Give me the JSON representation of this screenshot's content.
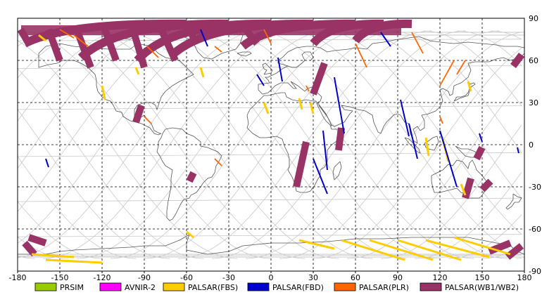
{
  "map": {
    "x_ticks": [
      "-180",
      "-150",
      "-120",
      "-90",
      "-60",
      "-30",
      "0",
      "30",
      "60",
      "90",
      "120",
      "150",
      "180"
    ],
    "y_ticks": [
      "90",
      "60",
      "30",
      "0",
      "-30",
      "-60",
      "-90"
    ],
    "lon_range": [
      -180,
      180
    ],
    "lat_range": [
      -90,
      90
    ],
    "grid": true,
    "colors": {
      "orbit": "#c8c8c8",
      "coast": "#555555",
      "grid": "#000000",
      "frame": "#000000"
    }
  },
  "legend": [
    {
      "label": "PRSIM",
      "color": "#99cc00"
    },
    {
      "label": "AVNIR-2",
      "color": "#ff00ff"
    },
    {
      "label": "PALSAR(FBS)",
      "color": "#ffcc00"
    },
    {
      "label": "PALSAR(FBD)",
      "color": "#0000cc"
    },
    {
      "label": "PALSAR(PLR)",
      "color": "#ff6600"
    },
    {
      "label": "PALSAR(WB1/WB2)",
      "color": "#993366"
    }
  ],
  "observations": {
    "wb": {
      "color": "#993366",
      "swaths": [
        {
          "lon1": -178,
          "lat1": 82,
          "lon2": -172,
          "lat2": 72
        },
        {
          "lon1": -158,
          "lat1": 82,
          "lon2": -150,
          "lat2": 60
        },
        {
          "lon1": -138,
          "lat1": 82,
          "lon2": -128,
          "lat2": 55
        },
        {
          "lon1": -118,
          "lat1": 82,
          "lon2": -110,
          "lat2": 60
        },
        {
          "lon1": -98,
          "lat1": 82,
          "lon2": -90,
          "lat2": 55
        },
        {
          "lon1": -78,
          "lat1": 82,
          "lon2": -68,
          "lat2": 60
        },
        {
          "lon1": -58,
          "lat1": 82,
          "lon2": -54,
          "lat2": 74
        },
        {
          "lon1": -18,
          "lat1": 82,
          "lon2": -10,
          "lat2": 72
        },
        {
          "lon1": 38,
          "lat1": 58,
          "lon2": 30,
          "lat2": 36
        },
        {
          "lon1": 25,
          "lat1": 2,
          "lon2": 18,
          "lat2": -30
        },
        {
          "lon1": -92,
          "lat1": 28,
          "lon2": -96,
          "lat2": 16
        },
        {
          "lon1": -55,
          "lat1": -20,
          "lon2": -58,
          "lat2": -26
        },
        {
          "lon1": 50,
          "lat1": 12,
          "lon2": 48,
          "lat2": -4
        },
        {
          "lon1": 150,
          "lat1": -2,
          "lon2": 146,
          "lat2": -10
        },
        {
          "lon1": 142,
          "lat1": -24,
          "lon2": 138,
          "lat2": -38
        },
        {
          "lon1": 156,
          "lat1": -26,
          "lon2": 150,
          "lat2": -32
        },
        {
          "lon1": 178,
          "lat1": 64,
          "lon2": 172,
          "lat2": 56
        },
        {
          "lon1": 170,
          "lat1": -70,
          "lon2": 155,
          "lat2": -76
        },
        {
          "lon1": 178,
          "lat1": -72,
          "lon2": 168,
          "lat2": -80
        },
        {
          "lon1": -172,
          "lat1": -66,
          "lon2": -160,
          "lat2": -70
        },
        {
          "lon1": -175,
          "lat1": -70,
          "lon2": -168,
          "lat2": -78
        }
      ],
      "arcs": [
        {
          "lon1": -175,
          "lat1": 72,
          "lon2": -60,
          "lat2": 86
        },
        {
          "lon1": -135,
          "lat1": 62,
          "lon2": -30,
          "lat2": 86
        },
        {
          "lon1": -95,
          "lat1": 60,
          "lon2": 0,
          "lat2": 86
        },
        {
          "lon1": -70,
          "lat1": 64,
          "lon2": 30,
          "lat2": 86
        },
        {
          "lon1": -20,
          "lat1": 70,
          "lon2": 60,
          "lat2": 86
        },
        {
          "lon1": 30,
          "lat1": 72,
          "lon2": 80,
          "lat2": 86
        },
        {
          "lon1": 60,
          "lat1": 74,
          "lon2": 100,
          "lat2": 86
        }
      ]
    },
    "fbd": {
      "color": "#0000cc",
      "lines": [
        {
          "lon1": 30,
          "lat1": -10,
          "lon2": 40,
          "lat2": -35
        },
        {
          "lon1": 37,
          "lat1": 10,
          "lon2": 40,
          "lat2": -18
        },
        {
          "lon1": 45,
          "lat1": 48,
          "lon2": 52,
          "lat2": 8
        },
        {
          "lon1": 92,
          "lat1": 32,
          "lon2": 98,
          "lat2": 6
        },
        {
          "lon1": 98,
          "lat1": 15,
          "lon2": 104,
          "lat2": -10
        },
        {
          "lon1": 120,
          "lat1": 10,
          "lon2": 132,
          "lat2": -30
        },
        {
          "lon1": -10,
          "lat1": 50,
          "lon2": -5,
          "lat2": 42
        },
        {
          "lon1": 5,
          "lat1": 62,
          "lon2": 8,
          "lat2": 45
        },
        {
          "lon1": -50,
          "lat1": 82,
          "lon2": -45,
          "lat2": 70
        },
        {
          "lon1": 78,
          "lat1": 80,
          "lon2": 85,
          "lat2": 70
        },
        {
          "lon1": -160,
          "lat1": -10,
          "lon2": -158,
          "lat2": -16
        },
        {
          "lon1": 175,
          "lat1": -2,
          "lon2": 176,
          "lat2": -6
        },
        {
          "lon1": 148,
          "lat1": 8,
          "lon2": 150,
          "lat2": 2
        }
      ]
    },
    "fbs": {
      "color": "#ffcc00",
      "lines": [
        {
          "lon1": -120,
          "lat1": 42,
          "lon2": -118,
          "lat2": 32
        },
        {
          "lon1": -96,
          "lat1": 55,
          "lon2": -94,
          "lat2": 50
        },
        {
          "lon1": -50,
          "lat1": 55,
          "lon2": -48,
          "lat2": 48
        },
        {
          "lon1": -5,
          "lat1": 30,
          "lon2": -2,
          "lat2": 22
        },
        {
          "lon1": 20,
          "lat1": 33,
          "lon2": 22,
          "lat2": 25
        },
        {
          "lon1": 28,
          "lat1": 30,
          "lon2": 30,
          "lat2": 22
        },
        {
          "lon1": 110,
          "lat1": 5,
          "lon2": 112,
          "lat2": -8
        },
        {
          "lon1": 122,
          "lat1": 4,
          "lon2": 126,
          "lat2": -12
        },
        {
          "lon1": 140,
          "lat1": 45,
          "lon2": 142,
          "lat2": 38
        },
        {
          "lon1": 135,
          "lat1": -28,
          "lon2": 138,
          "lat2": -36
        },
        {
          "lon1": -165,
          "lat1": 78,
          "lon2": -160,
          "lat2": 74
        },
        {
          "lon1": -60,
          "lat1": -62,
          "lon2": -55,
          "lat2": -66
        },
        {
          "lon1": 20,
          "lat1": -68,
          "lon2": 45,
          "lat2": -74
        },
        {
          "lon1": 50,
          "lat1": -68,
          "lon2": 95,
          "lat2": -82
        },
        {
          "lon1": 70,
          "lat1": -68,
          "lon2": 115,
          "lat2": -82
        },
        {
          "lon1": 90,
          "lat1": -68,
          "lon2": 135,
          "lat2": -82
        },
        {
          "lon1": 110,
          "lat1": -68,
          "lon2": 155,
          "lat2": -80
        },
        {
          "lon1": 130,
          "lat1": -66,
          "lon2": 170,
          "lat2": -78
        },
        {
          "lon1": -170,
          "lat1": -78,
          "lon2": -140,
          "lat2": -80
        },
        {
          "lon1": -160,
          "lat1": -82,
          "lon2": -120,
          "lat2": -84
        }
      ]
    },
    "plr": {
      "color": "#ff6600",
      "lines": [
        {
          "lon1": -140,
          "lat1": 78,
          "lon2": -130,
          "lat2": 70
        },
        {
          "lon1": -88,
          "lat1": 70,
          "lon2": -80,
          "lat2": 62
        },
        {
          "lon1": -40,
          "lat1": 70,
          "lon2": -35,
          "lat2": 66
        },
        {
          "lon1": -5,
          "lat1": 82,
          "lon2": 0,
          "lat2": 72
        },
        {
          "lon1": 60,
          "lat1": 72,
          "lon2": 68,
          "lat2": 55
        },
        {
          "lon1": 100,
          "lat1": 80,
          "lon2": 108,
          "lat2": 65
        },
        {
          "lon1": 130,
          "lat1": 60,
          "lon2": 120,
          "lat2": 42
        },
        {
          "lon1": 138,
          "lat1": 60,
          "lon2": 132,
          "lat2": 50
        },
        {
          "lon1": -90,
          "lat1": 20,
          "lon2": -85,
          "lat2": 15
        },
        {
          "lon1": -40,
          "lat1": -10,
          "lon2": -35,
          "lat2": -15
        },
        {
          "lon1": 25,
          "lat1": 42,
          "lon2": 27,
          "lat2": 38
        },
        {
          "lon1": 120,
          "lat1": 20,
          "lon2": 122,
          "lat2": 15
        },
        {
          "lon1": -150,
          "lat1": 82,
          "lon2": -140,
          "lat2": 76
        }
      ]
    }
  }
}
